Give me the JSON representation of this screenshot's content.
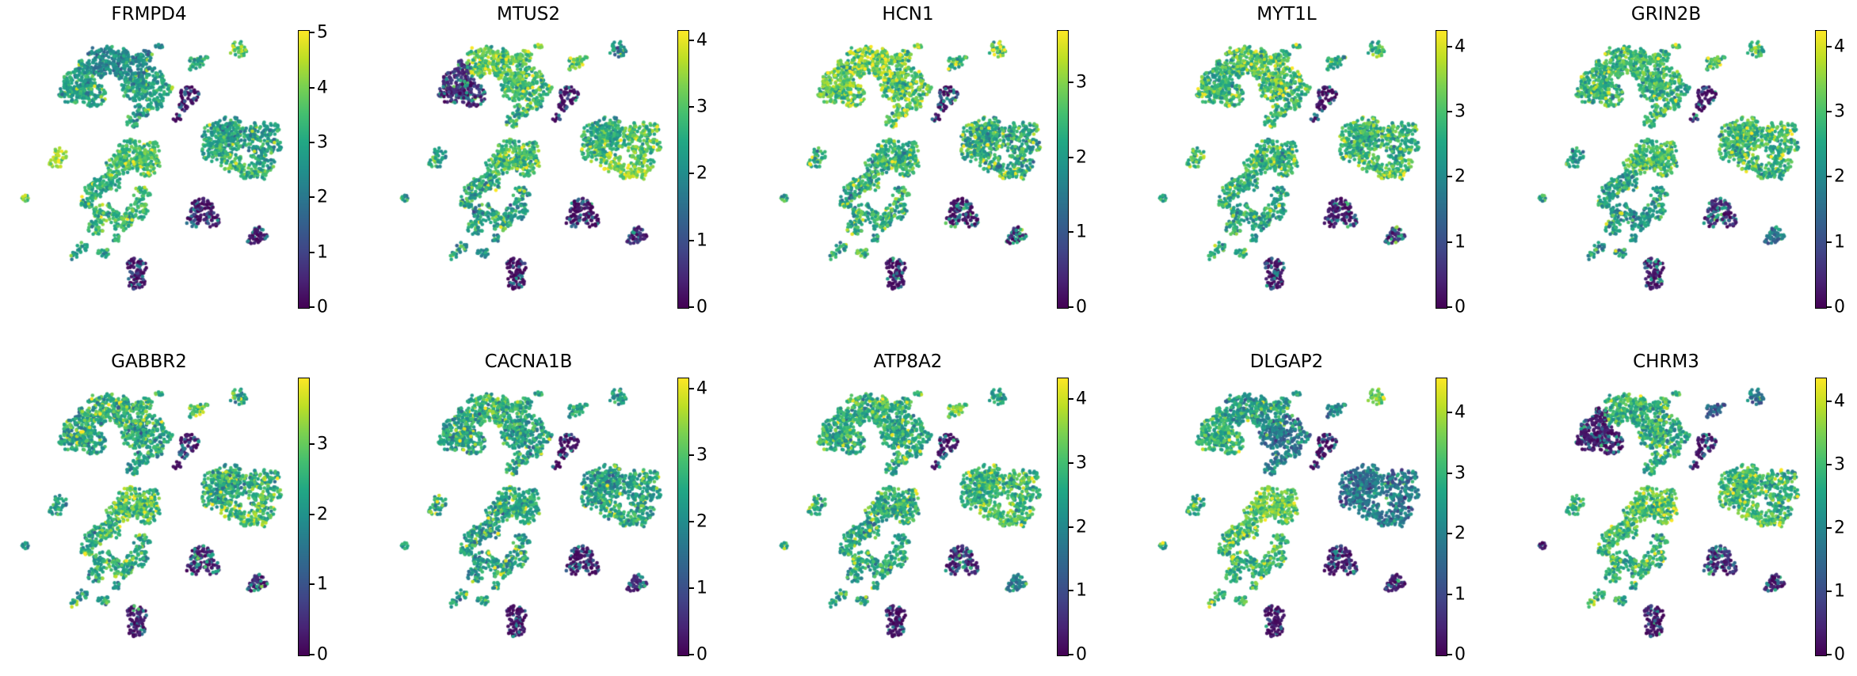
{
  "figure": {
    "background": "#ffffff",
    "rows": 2,
    "cols": 5,
    "description": "Grid of 10 single-cell embedding feature plots, one per gene, each with a viridis colorbar. No axis lines, ticks or axis labels are drawn on the scatter panels."
  },
  "chart_data": {
    "type": "scatter",
    "colormap": "viridis",
    "viridis_stops": [
      [
        0.0,
        "#440154"
      ],
      [
        0.1,
        "#482475"
      ],
      [
        0.2,
        "#414487"
      ],
      [
        0.3,
        "#355f8d"
      ],
      [
        0.4,
        "#2a788e"
      ],
      [
        0.5,
        "#21918c"
      ],
      [
        0.6,
        "#22a884"
      ],
      [
        0.7,
        "#44bf70"
      ],
      [
        0.8,
        "#7ad151"
      ],
      [
        0.9,
        "#bddf26"
      ],
      [
        1.0,
        "#fde725"
      ]
    ],
    "point_style": {
      "radius": 2.3,
      "density": 3.4
    },
    "panels": [
      {
        "gene": "FRMPD4",
        "vmax": 5.05,
        "colorbar_ticks": [
          0,
          1,
          2,
          3,
          4,
          5
        ]
      },
      {
        "gene": "MTUS2",
        "vmax": 4.15,
        "colorbar_ticks": [
          0,
          1,
          2,
          3,
          4
        ]
      },
      {
        "gene": "HCN1",
        "vmax": 3.7,
        "colorbar_ticks": [
          0,
          1,
          2,
          3
        ]
      },
      {
        "gene": "MYT1L",
        "vmax": 4.25,
        "colorbar_ticks": [
          0,
          1,
          2,
          3,
          4
        ]
      },
      {
        "gene": "GRIN2B",
        "vmax": 4.25,
        "colorbar_ticks": [
          0,
          1,
          2,
          3,
          4
        ]
      },
      {
        "gene": "GABBR2",
        "vmax": 3.95,
        "colorbar_ticks": [
          0,
          1,
          2,
          3
        ]
      },
      {
        "gene": "CACNA1B",
        "vmax": 4.17,
        "colorbar_ticks": [
          0,
          1,
          2,
          3,
          4
        ]
      },
      {
        "gene": "ATP8A2",
        "vmax": 4.34,
        "colorbar_ticks": [
          0,
          1,
          2,
          3,
          4
        ]
      },
      {
        "gene": "DLGAP2",
        "vmax": 4.58,
        "colorbar_ticks": [
          0,
          1,
          2,
          3,
          4
        ]
      },
      {
        "gene": "CHRM3",
        "vmax": 4.38,
        "colorbar_ticks": [
          0,
          1,
          2,
          3,
          4
        ]
      }
    ],
    "clusters": [
      {
        "id": "A-left",
        "blobs": [
          [
            25,
            19,
            6
          ],
          [
            30,
            23,
            5
          ],
          [
            21.5,
            23,
            4
          ],
          [
            27,
            13,
            3
          ]
        ]
      },
      {
        "id": "A-top",
        "blobs": [
          [
            37,
            10,
            6
          ],
          [
            43,
            13,
            6
          ],
          [
            32,
            13,
            4.5
          ],
          [
            48.5,
            9.5,
            3
          ],
          [
            53.5,
            5.5,
            1.5
          ],
          [
            30,
            7.5,
            2
          ]
        ]
      },
      {
        "id": "A-right",
        "blobs": [
          [
            50,
            18,
            5.5
          ],
          [
            45,
            21,
            5
          ],
          [
            52,
            25.5,
            3.5
          ],
          [
            47,
            29,
            3
          ],
          [
            44,
            33,
            2.5
          ],
          [
            56,
            21,
            2.5
          ]
        ]
      },
      {
        "id": "B",
        "blobs": [
          [
            66,
            12,
            2.6
          ],
          [
            69.5,
            10.5,
            2.2
          ]
        ]
      },
      {
        "id": "C",
        "blobs": [
          [
            82,
            6.5,
            3.2
          ]
        ]
      },
      {
        "id": "D",
        "blobs": [
          [
            64.5,
            23.5,
            3.6
          ],
          [
            62,
            27.5,
            2
          ],
          [
            60,
            31.5,
            1.6
          ]
        ]
      },
      {
        "id": "E-left",
        "blobs": [
          [
            74,
            38,
            5
          ],
          [
            79,
            35.5,
            5
          ],
          [
            72.5,
            44,
            4
          ],
          [
            78.5,
            42,
            4.5
          ],
          [
            84,
            39,
            4
          ]
        ]
      },
      {
        "id": "E-right",
        "blobs": [
          [
            90,
            36.5,
            4
          ],
          [
            94,
            42,
            3.5
          ],
          [
            92,
            48,
            3.5
          ],
          [
            88.5,
            44,
            3
          ],
          [
            94.5,
            35.5,
            2.5
          ]
        ]
      },
      {
        "id": "E-bottom",
        "blobs": [
          [
            79.5,
            48,
            4
          ],
          [
            85.5,
            51,
            3.5
          ],
          [
            90,
            52.5,
            2.5
          ]
        ]
      },
      {
        "id": "F",
        "blobs": [
          [
            18,
            45,
            2.6
          ],
          [
            16.5,
            48.5,
            2.2
          ]
        ]
      },
      {
        "id": "G-top",
        "blobs": [
          [
            44,
            45,
            6
          ],
          [
            49,
            48.5,
            5
          ],
          [
            39,
            49,
            4.5
          ],
          [
            51,
            42.5,
            3
          ]
        ]
      },
      {
        "id": "G-left",
        "blobs": [
          [
            31,
            57.5,
            4
          ],
          [
            36,
            55.5,
            4
          ],
          [
            28,
            62,
            3
          ]
        ]
      },
      {
        "id": "G-ring",
        "blobs": [
          [
            34,
            66.5,
            4
          ],
          [
            40,
            69.5,
            4
          ],
          [
            46,
            66,
            4
          ],
          [
            47.5,
            59.5,
            3
          ],
          [
            31,
            72,
            3
          ]
        ]
      },
      {
        "id": "G-tail",
        "blobs": [
          [
            26,
            79,
            2.2
          ],
          [
            23,
            82.5,
            1.6
          ],
          [
            33.5,
            81,
            2.2
          ],
          [
            38,
            76,
            1.8
          ]
        ]
      },
      {
        "id": "H",
        "blobs": [
          [
            6,
            61,
            1.6
          ]
        ]
      },
      {
        "id": "I",
        "blobs": [
          [
            69,
            65,
            4.2
          ],
          [
            72.5,
            69,
            3
          ],
          [
            66,
            69.5,
            2.6
          ]
        ]
      },
      {
        "id": "J",
        "blobs": [
          [
            89.5,
            74.5,
            3.4
          ],
          [
            86.5,
            76.5,
            1.8
          ]
        ]
      },
      {
        "id": "K",
        "blobs": [
          [
            45.5,
            86.5,
            3.6
          ],
          [
            45.5,
            91.5,
            3.4
          ]
        ]
      }
    ],
    "expression": {
      "FRMPD4": [
        2.9,
        2.3,
        2.8,
        3.1,
        3.9,
        0.3,
        2.9,
        2.7,
        3.4,
        4.4,
        3.5,
        3.1,
        3.3,
        3.0,
        3.6,
        0.5,
        0.6,
        0.5
      ],
      "MTUS2": [
        0.9,
        3.1,
        2.8,
        3.0,
        2.0,
        0.3,
        2.6,
        3.0,
        3.4,
        2.3,
        2.8,
        2.4,
        2.3,
        2.2,
        2.2,
        0.3,
        0.7,
        0.25
      ],
      "HCN1": [
        2.8,
        3.0,
        2.7,
        2.4,
        2.9,
        0.3,
        2.2,
        2.2,
        2.3,
        2.2,
        2.3,
        2.2,
        2.4,
        2.2,
        2.2,
        0.3,
        0.7,
        0.3
      ],
      "MYT1L": [
        2.8,
        3.0,
        2.9,
        2.5,
        2.6,
        0.4,
        2.8,
        2.7,
        3.0,
        2.9,
        2.7,
        2.5,
        2.5,
        2.5,
        2.6,
        0.5,
        1.0,
        0.4
      ],
      "GRIN2B": [
        2.7,
        2.8,
        2.7,
        2.9,
        2.9,
        0.4,
        2.8,
        2.7,
        2.8,
        2.3,
        2.9,
        2.5,
        2.3,
        2.3,
        2.4,
        0.8,
        1.6,
        0.5
      ],
      "GABBR2": [
        2.3,
        2.5,
        2.3,
        2.8,
        2.4,
        0.3,
        2.4,
        2.5,
        2.9,
        2.3,
        2.8,
        2.5,
        2.4,
        2.2,
        2.1,
        0.6,
        0.8,
        0.5
      ],
      "CACNA1B": [
        2.4,
        2.6,
        2.4,
        2.6,
        2.3,
        0.3,
        2.3,
        2.4,
        2.6,
        2.6,
        2.5,
        2.3,
        2.3,
        2.3,
        2.3,
        0.35,
        0.7,
        0.3
      ],
      "ATP8A2": [
        2.7,
        2.8,
        2.6,
        3.3,
        2.5,
        0.4,
        2.8,
        2.9,
        3.1,
        2.7,
        2.7,
        2.5,
        2.5,
        2.5,
        2.6,
        0.7,
        1.9,
        0.4
      ],
      "DLGAP2": [
        3.0,
        2.5,
        1.8,
        2.2,
        3.7,
        0.3,
        1.7,
        1.8,
        1.9,
        2.8,
        3.5,
        3.2,
        3.0,
        2.9,
        2.8,
        0.5,
        0.6,
        0.4
      ],
      "CHRM3": [
        0.5,
        2.8,
        2.6,
        1.3,
        1.6,
        0.5,
        2.9,
        2.7,
        3.1,
        2.9,
        3.2,
        2.9,
        2.8,
        2.7,
        0.6,
        0.9,
        0.6,
        0.4
      ]
    }
  }
}
